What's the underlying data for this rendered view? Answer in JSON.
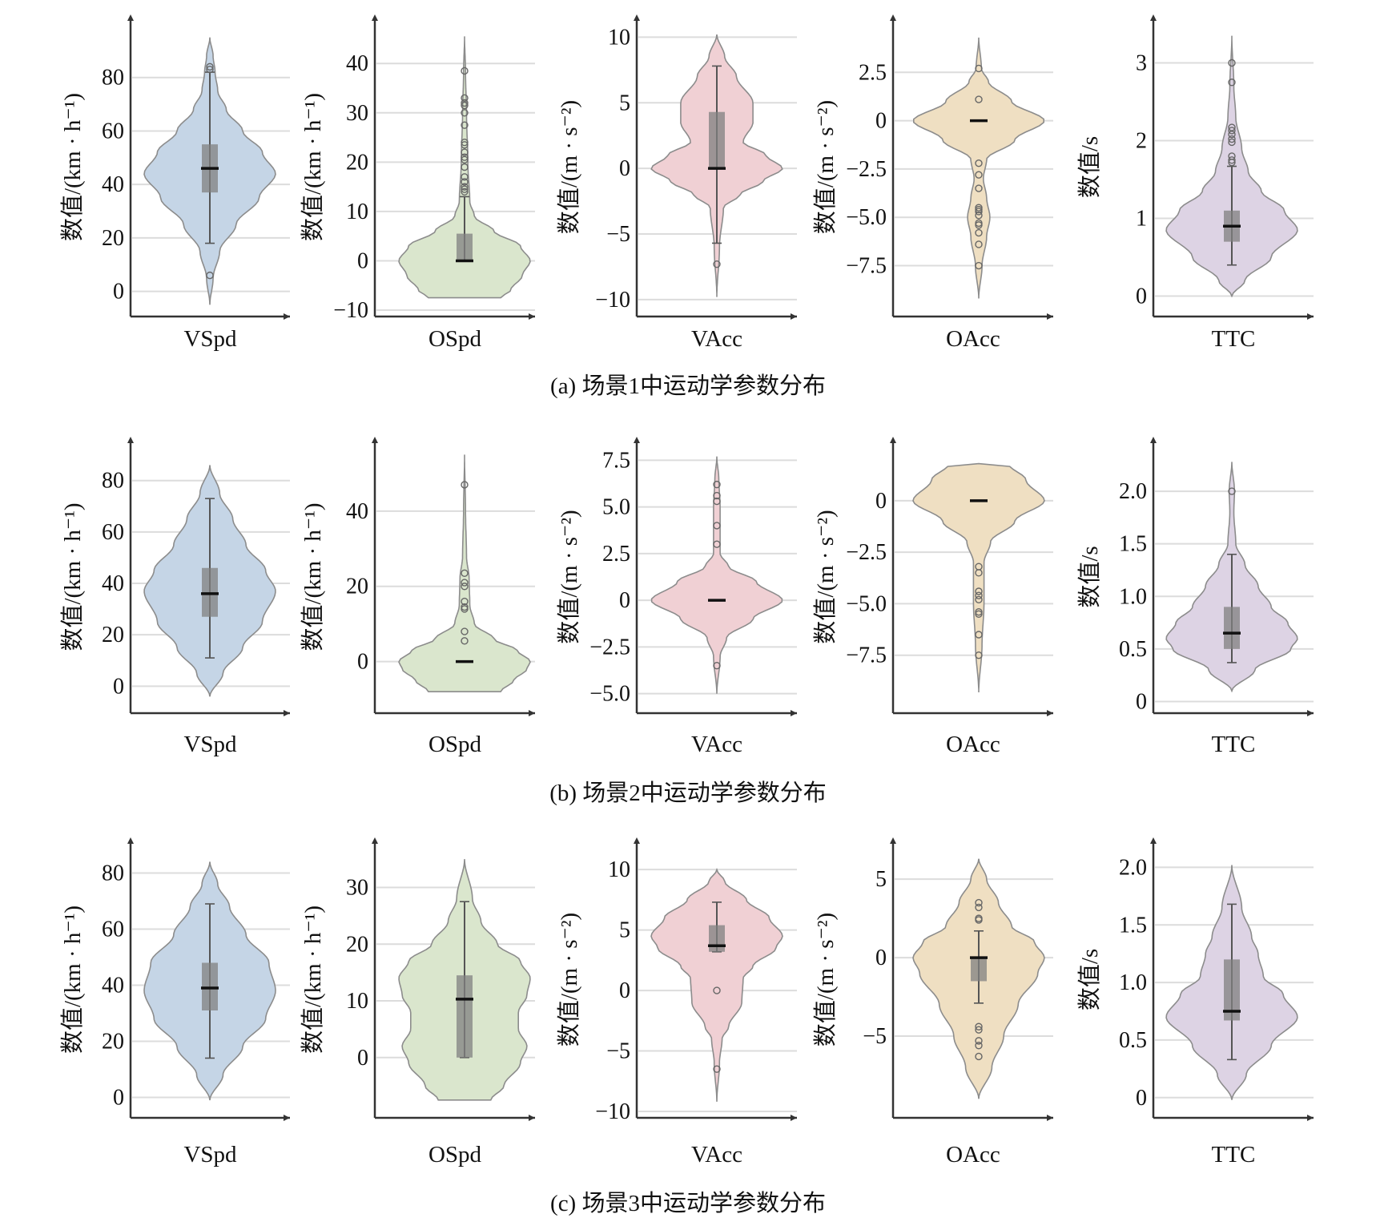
{
  "figure": {
    "captions": [
      "(a) 场景1中运动学参数分布",
      "(b) 场景2中运动学参数分布",
      "(c) 场景3中运动学参数分布"
    ],
    "colors": {
      "VSpd": "#c5d5e6",
      "OSpd": "#dae6cd",
      "VAcc": "#f0d0d4",
      "OAcc": "#efdfc2",
      "TTC": "#ddd3e4",
      "violin_edge": "#8c8c8c",
      "box": "#808080",
      "median": "#111111",
      "grid": "#dcdcdc",
      "axis": "#333333"
    }
  },
  "chart_data": [
    {
      "type": "violin",
      "scene": 1,
      "panel": "a",
      "category": "VSpd",
      "ylabel": "数值/(km · h⁻¹)",
      "yticks": [
        0,
        20,
        40,
        60,
        80
      ],
      "ytick_labels": [
        "0",
        "20",
        "40",
        "60",
        "80"
      ],
      "ylim": [
        -7,
        100
      ],
      "violin_range": [
        -5,
        95
      ],
      "density": [
        [
          -5,
          0.0
        ],
        [
          5,
          0.05
        ],
        [
          15,
          0.15
        ],
        [
          25,
          0.4
        ],
        [
          35,
          0.75
        ],
        [
          44,
          1.0
        ],
        [
          52,
          0.8
        ],
        [
          60,
          0.5
        ],
        [
          68,
          0.25
        ],
        [
          75,
          0.12
        ],
        [
          82,
          0.08
        ],
        [
          88,
          0.05
        ],
        [
          95,
          0.0
        ]
      ],
      "q1": 37,
      "median": 46,
      "q3": 55,
      "whisker_low": 18,
      "whisker_high": 82,
      "outliers": [
        83,
        84,
        6
      ]
    },
    {
      "type": "violin",
      "scene": 1,
      "panel": "a",
      "category": "OSpd",
      "ylabel": "数值/(km · h⁻¹)",
      "yticks": [
        -10,
        0,
        10,
        20,
        30,
        40
      ],
      "ytick_labels": [
        "−10",
        "0",
        "10",
        "20",
        "30",
        "40"
      ],
      "ylim": [
        -10,
        48
      ],
      "violin_range": [
        -7.5,
        45.5
      ],
      "density": [
        [
          -7.5,
          0.55
        ],
        [
          -6,
          0.7
        ],
        [
          -3,
          0.88
        ],
        [
          0,
          1.0
        ],
        [
          3,
          0.85
        ],
        [
          6,
          0.45
        ],
        [
          9,
          0.15
        ],
        [
          12,
          0.08
        ],
        [
          20,
          0.05
        ],
        [
          30,
          0.03
        ],
        [
          38,
          0.015
        ],
        [
          45.5,
          0.0
        ]
      ],
      "q1": 0,
      "median": 0,
      "q3": 5.5,
      "whisker_low": 0,
      "whisker_high": 13,
      "outliers": [
        14,
        14.5,
        15,
        16,
        17,
        19,
        20.5,
        21,
        22,
        23.5,
        24,
        27.5,
        30,
        31.5,
        32,
        33,
        38.5
      ]
    },
    {
      "type": "violin",
      "scene": 1,
      "panel": "a",
      "category": "VAcc",
      "ylabel": "数值/(m · s⁻²)",
      "yticks": [
        -10,
        -5,
        0,
        5,
        10
      ],
      "ytick_labels": [
        "−10",
        "−5",
        "0",
        "5",
        "10"
      ],
      "ylim": [
        -10.8,
        11
      ],
      "violin_range": [
        -9.8,
        10.2
      ],
      "density": [
        [
          -9.8,
          0.0
        ],
        [
          -6,
          0.04
        ],
        [
          -3,
          0.1
        ],
        [
          -2,
          0.35
        ],
        [
          -1,
          0.7
        ],
        [
          0,
          1.0
        ],
        [
          1,
          0.75
        ],
        [
          2,
          0.4
        ],
        [
          3.5,
          0.55
        ],
        [
          5,
          0.55
        ],
        [
          7,
          0.3
        ],
        [
          8.5,
          0.12
        ],
        [
          10.2,
          0.0
        ]
      ],
      "q1": 0,
      "median": 0,
      "q3": 4.3,
      "whisker_low": -5.7,
      "whisker_high": 7.8,
      "outliers": [
        -7.3
      ]
    },
    {
      "type": "violin",
      "scene": 1,
      "panel": "a",
      "category": "OAcc",
      "ylabel": "数值/(m · s⁻²)",
      "yticks": [
        -7.5,
        -5.0,
        -2.5,
        0,
        2.5
      ],
      "ytick_labels": [
        "−7.5",
        "−5.0",
        "−2.5",
        "0",
        "2.5"
      ],
      "ylim": [
        -9.8,
        5
      ],
      "violin_range": [
        -9.2,
        4.3
      ],
      "density": [
        [
          -9.2,
          0.0
        ],
        [
          -7.5,
          0.05
        ],
        [
          -6,
          0.12
        ],
        [
          -5,
          0.17
        ],
        [
          -4,
          0.12
        ],
        [
          -3,
          0.07
        ],
        [
          -2,
          0.12
        ],
        [
          -1,
          0.55
        ],
        [
          0,
          1.0
        ],
        [
          1,
          0.5
        ],
        [
          2,
          0.15
        ],
        [
          2.7,
          0.04
        ],
        [
          4.3,
          0.0
        ]
      ],
      "q1": 0,
      "median": 0,
      "q3": 0,
      "whisker_low": 0,
      "whisker_high": 0,
      "outliers": [
        2.7,
        1.1,
        -2.2,
        -2.8,
        -3.5,
        -4.5,
        -4.6,
        -4.7,
        -4.9,
        -5.3,
        -5.4,
        -5.8,
        -6.4,
        -7.5
      ]
    },
    {
      "type": "violin",
      "scene": 1,
      "panel": "a",
      "category": "TTC",
      "ylabel": "数值/s",
      "yticks": [
        0,
        1,
        2,
        3
      ],
      "ytick_labels": [
        "0",
        "1",
        "2",
        "3"
      ],
      "ylim": [
        -0.18,
        3.5
      ],
      "violin_range": [
        0,
        3.35
      ],
      "density": [
        [
          0,
          0.0
        ],
        [
          0.2,
          0.2
        ],
        [
          0.5,
          0.6
        ],
        [
          0.85,
          1.0
        ],
        [
          1.1,
          0.8
        ],
        [
          1.35,
          0.45
        ],
        [
          1.6,
          0.25
        ],
        [
          1.9,
          0.15
        ],
        [
          2.3,
          0.06
        ],
        [
          2.7,
          0.03
        ],
        [
          3.35,
          0.0
        ]
      ],
      "q1": 0.7,
      "median": 0.9,
      "q3": 1.1,
      "whisker_low": 0.4,
      "whisker_high": 1.67,
      "outliers": [
        1.72,
        1.75,
        1.8,
        1.98,
        2.02,
        2.08,
        2.13,
        2.17,
        2.75,
        3.0
      ]
    },
    {
      "type": "violin",
      "scene": 2,
      "panel": "b",
      "category": "VSpd",
      "ylabel": "数值/(km · h⁻¹)",
      "yticks": [
        0,
        20,
        40,
        60,
        80
      ],
      "ytick_labels": [
        "0",
        "20",
        "40",
        "60",
        "80"
      ],
      "ylim": [
        -8,
        93
      ],
      "violin_range": [
        -4,
        86
      ],
      "density": [
        [
          -4,
          0.0
        ],
        [
          5,
          0.2
        ],
        [
          15,
          0.5
        ],
        [
          25,
          0.8
        ],
        [
          37,
          1.0
        ],
        [
          45,
          0.85
        ],
        [
          55,
          0.55
        ],
        [
          65,
          0.35
        ],
        [
          75,
          0.15
        ],
        [
          86,
          0.0
        ]
      ],
      "q1": 27,
      "median": 36,
      "q3": 46,
      "whisker_low": 11,
      "whisker_high": 73,
      "outliers": []
    },
    {
      "type": "violin",
      "scene": 2,
      "panel": "b",
      "category": "OSpd",
      "ylabel": "数值/(km · h⁻¹)",
      "yticks": [
        0,
        20,
        40
      ],
      "ytick_labels": [
        "0",
        "20",
        "40"
      ],
      "ylim": [
        -12,
        57
      ],
      "violin_range": [
        -8,
        55
      ],
      "density": [
        [
          -8,
          0.55
        ],
        [
          -5,
          0.75
        ],
        [
          -2,
          0.95
        ],
        [
          0,
          1.0
        ],
        [
          3,
          0.8
        ],
        [
          6,
          0.45
        ],
        [
          10,
          0.15
        ],
        [
          15,
          0.08
        ],
        [
          22,
          0.07
        ],
        [
          28,
          0.03
        ],
        [
          40,
          0.015
        ],
        [
          55,
          0.0
        ]
      ],
      "q1": 0,
      "median": 0,
      "q3": 0,
      "whisker_low": 0,
      "whisker_high": 0,
      "outliers": [
        47,
        23.5,
        21,
        20,
        16,
        14.5,
        14,
        8,
        5.5
      ]
    },
    {
      "type": "violin",
      "scene": 2,
      "panel": "b",
      "category": "VAcc",
      "ylabel": "数值/(m · s⁻²)",
      "yticks": [
        -5.0,
        -2.5,
        0,
        2.5,
        5.0,
        7.5
      ],
      "ytick_labels": [
        "−5.0",
        "−2.5",
        "0",
        "2.5",
        "5.0",
        "7.5"
      ],
      "ylim": [
        -5.7,
        8.2
      ],
      "violin_range": [
        -5,
        7.7
      ],
      "density": [
        [
          -5,
          0.0
        ],
        [
          -3,
          0.05
        ],
        [
          -2,
          0.15
        ],
        [
          -1,
          0.55
        ],
        [
          0,
          1.0
        ],
        [
          1,
          0.6
        ],
        [
          1.8,
          0.18
        ],
        [
          2.5,
          0.05
        ],
        [
          5,
          0.05
        ],
        [
          6.5,
          0.03
        ],
        [
          7.7,
          0.0
        ]
      ],
      "q1": 0,
      "median": 0,
      "q3": 0,
      "whisker_low": 0,
      "whisker_high": 0,
      "outliers": [
        6.2,
        5.6,
        5.3,
        4.0,
        3.0,
        -3.5
      ]
    },
    {
      "type": "violin",
      "scene": 2,
      "panel": "b",
      "category": "OAcc",
      "ylabel": "数值/(m · s⁻²)",
      "yticks": [
        -7.5,
        -5.0,
        -2.5,
        0
      ],
      "ytick_labels": [
        "−7.5",
        "−5.0",
        "−2.5",
        "0"
      ],
      "ylim": [
        -10,
        2.6
      ],
      "violin_range": [
        -9.3,
        1.8
      ],
      "density": [
        [
          -9.3,
          0.0
        ],
        [
          -7,
          0.05
        ],
        [
          -5,
          0.08
        ],
        [
          -3,
          0.08
        ],
        [
          -2,
          0.18
        ],
        [
          -1,
          0.55
        ],
        [
          0,
          1.0
        ],
        [
          1,
          0.72
        ],
        [
          1.8,
          0.45
        ]
      ],
      "q1": 0,
      "median": 0,
      "q3": 0,
      "whisker_low": 0,
      "whisker_high": 0,
      "outliers": [
        -3.2,
        -3.5,
        -4.4,
        -4.6,
        -4.8,
        -5.4,
        -5.5,
        -6.5,
        -7.5
      ]
    },
    {
      "type": "violin",
      "scene": 2,
      "panel": "b",
      "category": "TTC",
      "ylabel": "数值/s",
      "yticks": [
        0,
        0.5,
        1.0,
        1.5,
        2.0
      ],
      "ytick_labels": [
        "0",
        "0.5",
        "1.0",
        "1.5",
        "2.0"
      ],
      "ylim": [
        -0.05,
        2.42
      ],
      "violin_range": [
        0.1,
        2.28
      ],
      "density": [
        [
          0.1,
          0.0
        ],
        [
          0.3,
          0.35
        ],
        [
          0.5,
          0.9
        ],
        [
          0.6,
          1.0
        ],
        [
          0.75,
          0.85
        ],
        [
          0.9,
          0.6
        ],
        [
          1.1,
          0.4
        ],
        [
          1.3,
          0.2
        ],
        [
          1.5,
          0.06
        ],
        [
          1.8,
          0.03
        ],
        [
          2.0,
          0.04
        ],
        [
          2.28,
          0.0
        ]
      ],
      "q1": 0.5,
      "median": 0.65,
      "q3": 0.9,
      "whisker_low": 0.37,
      "whisker_high": 1.4,
      "outliers": [
        2.0
      ]
    },
    {
      "type": "violin",
      "scene": 3,
      "panel": "c",
      "category": "VSpd",
      "ylabel": "数值/(km · h⁻¹)",
      "yticks": [
        0,
        20,
        40,
        60,
        80
      ],
      "ytick_labels": [
        "0",
        "20",
        "40",
        "60",
        "80"
      ],
      "ylim": [
        -5,
        89
      ],
      "violin_range": [
        -1,
        84
      ],
      "density": [
        [
          -1,
          0.0
        ],
        [
          8,
          0.2
        ],
        [
          18,
          0.5
        ],
        [
          28,
          0.85
        ],
        [
          38,
          1.0
        ],
        [
          48,
          0.9
        ],
        [
          58,
          0.55
        ],
        [
          68,
          0.3
        ],
        [
          76,
          0.12
        ],
        [
          84,
          0.0
        ]
      ],
      "q1": 31,
      "median": 39,
      "q3": 48,
      "whisker_low": 14,
      "whisker_high": 69,
      "outliers": []
    },
    {
      "type": "violin",
      "scene": 3,
      "panel": "c",
      "category": "OSpd",
      "ylabel": "数值/(km · h⁻¹)",
      "yticks": [
        0,
        10,
        20,
        30
      ],
      "ytick_labels": [
        "0",
        "10",
        "20",
        "30"
      ],
      "ylim": [
        -9.5,
        37
      ],
      "violin_range": [
        -7.5,
        35
      ],
      "density": [
        [
          -7.5,
          0.4
        ],
        [
          -5,
          0.6
        ],
        [
          -1,
          0.85
        ],
        [
          2,
          0.95
        ],
        [
          5,
          0.82
        ],
        [
          8,
          0.82
        ],
        [
          11,
          0.95
        ],
        [
          14,
          1.0
        ],
        [
          17,
          0.85
        ],
        [
          20,
          0.5
        ],
        [
          24,
          0.25
        ],
        [
          28,
          0.12
        ],
        [
          35,
          0.0
        ]
      ],
      "q1": 0,
      "median": 10.3,
      "q3": 14.5,
      "whisker_low": 0,
      "whisker_high": 27.5,
      "outliers": []
    },
    {
      "type": "violin",
      "scene": 3,
      "panel": "c",
      "category": "VAcc",
      "ylabel": "数值/(m · s⁻²)",
      "yticks": [
        -10,
        -5,
        0,
        5,
        10
      ],
      "ytick_labels": [
        "−10",
        "−5",
        "0",
        "5",
        "10"
      ],
      "ylim": [
        -10,
        11.8
      ],
      "violin_range": [
        -9.2,
        10
      ],
      "density": [
        [
          -9.2,
          0.0
        ],
        [
          -6,
          0.04
        ],
        [
          -4,
          0.08
        ],
        [
          -3,
          0.18
        ],
        [
          -1,
          0.38
        ],
        [
          1,
          0.4
        ],
        [
          2,
          0.55
        ],
        [
          3.5,
          0.9
        ],
        [
          4.5,
          1.0
        ],
        [
          6,
          0.8
        ],
        [
          7.5,
          0.45
        ],
        [
          9,
          0.12
        ],
        [
          10,
          0.0
        ]
      ],
      "q1": 3.2,
      "median": 3.7,
      "q3": 5.4,
      "whisker_low": 3.2,
      "whisker_high": 7.3,
      "outliers": [
        0,
        -6.5
      ]
    },
    {
      "type": "violin",
      "scene": 3,
      "panel": "c",
      "category": "OAcc",
      "ylabel": "数值/(m · s⁻²)",
      "yticks": [
        -5,
        0,
        5
      ],
      "ytick_labels": [
        "−5",
        "0",
        "5"
      ],
      "ylim": [
        -9.8,
        7
      ],
      "violin_range": [
        -9,
        6.3
      ],
      "density": [
        [
          -9,
          0.0
        ],
        [
          -7,
          0.2
        ],
        [
          -5,
          0.38
        ],
        [
          -3,
          0.6
        ],
        [
          -1,
          0.9
        ],
        [
          0,
          1.0
        ],
        [
          1,
          0.85
        ],
        [
          2,
          0.5
        ],
        [
          3.5,
          0.3
        ],
        [
          5,
          0.12
        ],
        [
          6.3,
          0.0
        ]
      ],
      "q1": -1.5,
      "median": 0,
      "q3": 0,
      "whisker_low": -2.9,
      "whisker_high": 1.7,
      "outliers": [
        3.5,
        3.2,
        2.5,
        2.4,
        -4.4,
        -4.6,
        -5.3,
        -5.6,
        -6.3
      ]
    },
    {
      "type": "violin",
      "scene": 3,
      "panel": "c",
      "category": "TTC",
      "ylabel": "数值/s",
      "yticks": [
        0,
        0.5,
        1.0,
        1.5,
        2.0
      ],
      "ytick_labels": [
        "0",
        "0.5",
        "1.0",
        "1.5",
        "2.0"
      ],
      "ylim": [
        -0.12,
        2.17
      ],
      "violin_range": [
        -0.02,
        2.02
      ],
      "density": [
        [
          -0.02,
          0.0
        ],
        [
          0.2,
          0.22
        ],
        [
          0.45,
          0.6
        ],
        [
          0.7,
          1.0
        ],
        [
          0.9,
          0.78
        ],
        [
          1.05,
          0.48
        ],
        [
          1.25,
          0.4
        ],
        [
          1.4,
          0.3
        ],
        [
          1.65,
          0.15
        ],
        [
          2.02,
          0.0
        ]
      ],
      "q1": 0.67,
      "median": 0.75,
      "q3": 1.2,
      "whisker_low": 0.33,
      "whisker_high": 1.68,
      "outliers": []
    }
  ]
}
